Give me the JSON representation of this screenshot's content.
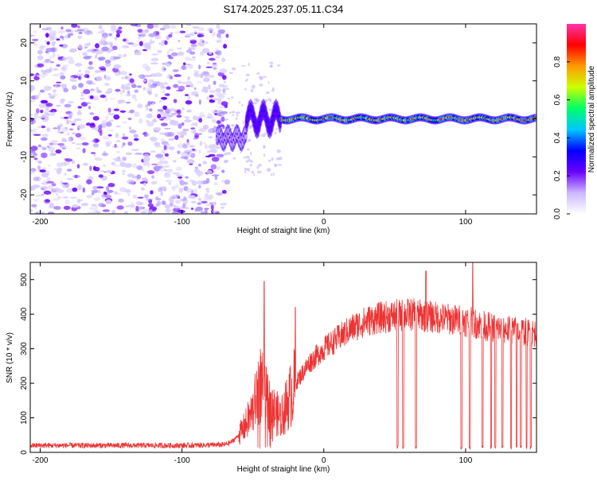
{
  "title": "S174.2025.237.05.11.C34",
  "colors": {
    "snr_line": "#ee3333",
    "colorbar_stops": [
      "#ffffff",
      "#cbb6ff",
      "#6a00ff",
      "#0000ff",
      "#00c8ff",
      "#00ff66",
      "#ccff00",
      "#ff9900",
      "#ff0000",
      "#ff33aa"
    ]
  },
  "chart_data": [
    {
      "type": "heatmap",
      "xlabel": "Height of straight line (km)",
      "ylabel": "Frequency (Hz)",
      "xlim": [
        -207,
        150
      ],
      "ylim": [
        -25,
        25
      ],
      "xticks": [
        -200,
        -100,
        0,
        100
      ],
      "yticks": [
        -20,
        -10,
        0,
        10,
        20
      ],
      "colorbar": {
        "label": "Normalized spectral amplitude",
        "range": [
          0.0,
          1.0
        ],
        "ticks": [
          "0.0",
          "0.2",
          "0.4",
          "0.6",
          "0.8"
        ],
        "tick_values": [
          0.0,
          0.2,
          0.4,
          0.6,
          0.8
        ]
      },
      "regions": [
        {
          "description_value": "noise",
          "x_range": [
            -207,
            -70
          ],
          "f_range": [
            -25,
            25
          ],
          "amplitude": 0.1
        },
        {
          "x_range": [
            -75,
            -55
          ],
          "f_center": -5,
          "amplitude": 0.25
        },
        {
          "x_range": [
            -55,
            -30
          ],
          "f_center": 0,
          "amplitude": 0.35
        },
        {
          "x_range": [
            -30,
            150
          ],
          "f_center": 0,
          "amplitude": 0.7
        }
      ]
    },
    {
      "type": "line",
      "xlabel": "Height of straight line (km)",
      "ylabel": "SNR (10 * v/v)",
      "xlim": [
        -207,
        150
      ],
      "ylim": [
        0,
        550
      ],
      "xticks": [
        -200,
        -100,
        0,
        100
      ],
      "yticks": [
        0,
        100,
        200,
        300,
        400,
        500
      ],
      "envelope": {
        "x": [
          -207,
          -150,
          -100,
          -70,
          -65,
          -60,
          -55,
          -50,
          -45,
          -40,
          -35,
          -30,
          -25,
          -20,
          -15,
          -10,
          -5,
          0,
          10,
          20,
          30,
          40,
          50,
          60,
          70,
          80,
          90,
          100,
          110,
          120,
          130,
          140,
          150
        ],
        "y": [
          20,
          20,
          20,
          22,
          30,
          50,
          80,
          120,
          200,
          150,
          120,
          100,
          150,
          200,
          230,
          260,
          280,
          300,
          330,
          360,
          380,
          390,
          395,
          400,
          395,
          390,
          385,
          380,
          370,
          360,
          355,
          350,
          345
        ]
      },
      "dropouts": [
        52,
        56,
        65,
        97,
        103,
        112,
        118,
        121,
        126,
        132,
        136,
        139,
        143,
        146
      ],
      "spikes": [
        {
          "x": -42,
          "y": 495
        },
        {
          "x": -20,
          "y": 420
        },
        {
          "x": 72,
          "y": 525
        },
        {
          "x": 105,
          "y": 550
        }
      ]
    }
  ]
}
